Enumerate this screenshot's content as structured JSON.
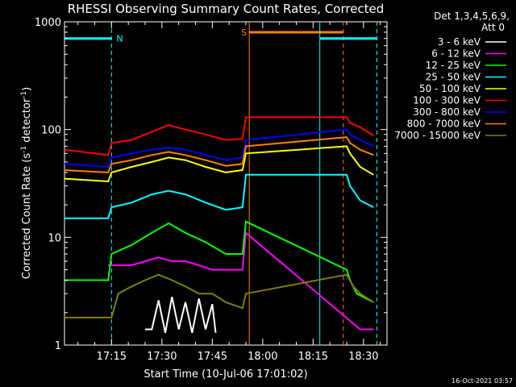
{
  "chart_data": {
    "type": "line",
    "title": "RHESSI Observing Summary Count Rates, Corrected",
    "xlabel": "Start Time (10-Jul-06 17:01:02)",
    "ylabel": "Corrected Count Rate (s",
    "ylabel_sup1": "-1",
    "ylabel_mid": " detector",
    "ylabel_sup2": "-1",
    "ylabel_end": ")",
    "yscale": "log",
    "ylim": [
      1,
      1000
    ],
    "xlim_minutes": [
      0,
      96
    ],
    "x_ticks": [
      {
        "min": 14,
        "label": "17:15"
      },
      {
        "min": 29,
        "label": "17:30"
      },
      {
        "min": 44,
        "label": "17:45"
      },
      {
        "min": 59,
        "label": "18:00"
      },
      {
        "min": 74,
        "label": "18:15"
      },
      {
        "min": 89,
        "label": "18:30"
      }
    ],
    "y_ticks": [
      {
        "value": 1,
        "label": "1"
      },
      {
        "value": 10,
        "label": "10"
      },
      {
        "value": 100,
        "label": "100"
      },
      {
        "value": 1000,
        "label": "1000"
      }
    ],
    "legend": {
      "placement": "right",
      "header1": "Det 1,3,4,5,6,9,",
      "header2": "Att 0"
    },
    "series": [
      {
        "name": "3 - 6 keV",
        "color": "#ffffff",
        "pts": [
          [
            24,
            1.4
          ],
          [
            26,
            1.4
          ],
          [
            28,
            2.6
          ],
          [
            30,
            1.3
          ],
          [
            32,
            2.8
          ],
          [
            34,
            1.4
          ],
          [
            36,
            2.5
          ],
          [
            38,
            1.3
          ],
          [
            40,
            2.7
          ],
          [
            42,
            1.4
          ],
          [
            44,
            2.4
          ],
          [
            45,
            1.3
          ]
        ]
      },
      {
        "name": "6 - 12 keV",
        "color": "#ff00ff",
        "pts": [
          [
            13,
            5.5
          ],
          [
            20,
            5.5
          ],
          [
            24,
            6
          ],
          [
            28,
            6.5
          ],
          [
            32,
            6
          ],
          [
            36,
            6
          ],
          [
            40,
            5.5
          ],
          [
            44,
            5
          ],
          [
            50,
            5
          ],
          [
            53,
            5
          ],
          [
            54,
            11
          ],
          [
            88,
            1.4
          ],
          [
            92,
            1.4
          ]
        ]
      },
      {
        "name": "12 - 25 keV",
        "color": "#00ff00",
        "pts": [
          [
            0,
            4
          ],
          [
            13,
            4
          ],
          [
            14,
            7
          ],
          [
            20,
            8.5
          ],
          [
            26,
            11
          ],
          [
            31,
            13.5
          ],
          [
            36,
            11
          ],
          [
            42,
            9
          ],
          [
            48,
            7
          ],
          [
            53,
            7
          ],
          [
            54,
            14
          ],
          [
            84,
            5
          ],
          [
            85,
            4
          ],
          [
            87,
            3
          ],
          [
            92,
            2.5
          ]
        ]
      },
      {
        "name": "25 - 50 keV",
        "color": "#00ffff",
        "pts": [
          [
            0,
            15
          ],
          [
            13,
            15
          ],
          [
            14,
            19
          ],
          [
            20,
            21
          ],
          [
            26,
            25
          ],
          [
            31,
            27
          ],
          [
            36,
            25
          ],
          [
            42,
            21
          ],
          [
            48,
            18
          ],
          [
            53,
            19
          ],
          [
            54,
            38
          ],
          [
            84,
            38
          ],
          [
            85,
            30
          ],
          [
            88,
            22
          ],
          [
            92,
            19
          ]
        ]
      },
      {
        "name": "50 - 100 keV",
        "color": "#ffff00",
        "pts": [
          [
            0,
            35
          ],
          [
            13,
            33
          ],
          [
            14,
            40
          ],
          [
            20,
            45
          ],
          [
            26,
            50
          ],
          [
            31,
            55
          ],
          [
            36,
            52
          ],
          [
            42,
            45
          ],
          [
            48,
            40
          ],
          [
            53,
            42
          ],
          [
            54,
            60
          ],
          [
            84,
            70
          ],
          [
            85,
            60
          ],
          [
            88,
            45
          ],
          [
            92,
            38
          ]
        ]
      },
      {
        "name": "100 - 300 keV",
        "color": "#ff0000",
        "pts": [
          [
            0,
            65
          ],
          [
            13,
            58
          ],
          [
            14,
            75
          ],
          [
            20,
            80
          ],
          [
            26,
            95
          ],
          [
            31,
            110
          ],
          [
            36,
            100
          ],
          [
            42,
            90
          ],
          [
            48,
            80
          ],
          [
            53,
            82
          ],
          [
            54,
            130
          ],
          [
            84,
            130
          ],
          [
            85,
            115
          ],
          [
            88,
            105
          ],
          [
            92,
            88
          ]
        ]
      },
      {
        "name": "300 - 800 keV",
        "color": "#0000ff",
        "pts": [
          [
            0,
            48
          ],
          [
            13,
            45
          ],
          [
            14,
            55
          ],
          [
            20,
            60
          ],
          [
            26,
            65
          ],
          [
            31,
            68
          ],
          [
            36,
            65
          ],
          [
            42,
            58
          ],
          [
            48,
            52
          ],
          [
            53,
            55
          ],
          [
            54,
            80
          ],
          [
            84,
            100
          ],
          [
            85,
            90
          ],
          [
            88,
            80
          ],
          [
            92,
            70
          ]
        ]
      },
      {
        "name": "800 - 7000 keV",
        "color": "#ff8000",
        "pts": [
          [
            0,
            42
          ],
          [
            13,
            40
          ],
          [
            14,
            48
          ],
          [
            20,
            52
          ],
          [
            26,
            58
          ],
          [
            31,
            62
          ],
          [
            36,
            58
          ],
          [
            42,
            52
          ],
          [
            48,
            46
          ],
          [
            53,
            48
          ],
          [
            54,
            70
          ],
          [
            84,
            85
          ],
          [
            85,
            75
          ],
          [
            88,
            65
          ],
          [
            92,
            58
          ]
        ]
      },
      {
        "name": "7000 - 15000 keV",
        "color": "#808000",
        "pts": [
          [
            0,
            1.8
          ],
          [
            14,
            1.8
          ],
          [
            16,
            3
          ],
          [
            20,
            3.5
          ],
          [
            24,
            4
          ],
          [
            28,
            4.5
          ],
          [
            32,
            4
          ],
          [
            36,
            3.5
          ],
          [
            40,
            3
          ],
          [
            44,
            3
          ],
          [
            48,
            2.5
          ],
          [
            53,
            2.2
          ],
          [
            54,
            3
          ],
          [
            84,
            4.5
          ],
          [
            86,
            3.5
          ],
          [
            88,
            3
          ],
          [
            92,
            2.5
          ]
        ]
      }
    ],
    "annotations": [
      {
        "label": "N",
        "color": "#00ffff",
        "bar_start": 0,
        "bar_end": 14,
        "bar_value": 700,
        "end_dash": 14
      },
      {
        "label": "S",
        "color": "#ff8000",
        "bar_start": 55,
        "bar_end": 83,
        "bar_value": 800,
        "start_solid": 55,
        "end_dash": 83
      },
      {
        "label": "",
        "color": "#00ffff",
        "bar_start": 76,
        "bar_end": 93,
        "bar_value": 700,
        "start_solid": 76,
        "end_dash": 93
      }
    ],
    "footer_date": "16-Oct-2021 03:57"
  }
}
